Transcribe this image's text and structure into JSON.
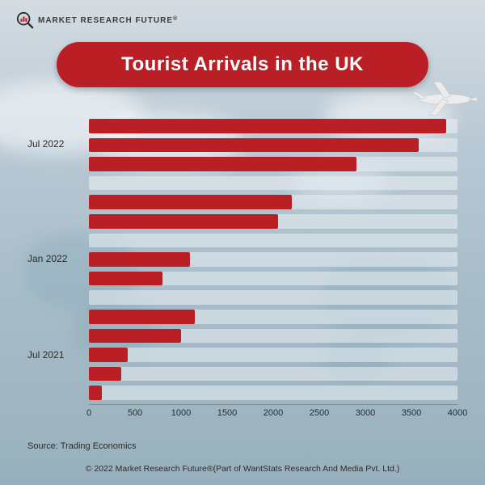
{
  "logo": {
    "text": "MARKET RESEARCH FUTURE",
    "accent": "#b91f25",
    "dark": "#2b2b2b"
  },
  "title": {
    "text": "Tourist Arrivals in the UK",
    "bg": "#b91f25",
    "color": "#ffffff",
    "fontsize": 24
  },
  "chart": {
    "type": "bar-horizontal",
    "xlim": [
      0,
      4000
    ],
    "xtick_step": 500,
    "xticks": [
      "0",
      "500",
      "1000",
      "1500",
      "2000",
      "2500",
      "3000",
      "3500",
      "4000"
    ],
    "bar_color": "#b91f25",
    "track_color": "rgba(235,240,244,0.55)",
    "row_height": 20.8,
    "ylabels": [
      {
        "text": "Jul 2022",
        "row": 1
      },
      {
        "text": "Jan 2022",
        "row": 7
      },
      {
        "text": "Jul 2021",
        "row": 12
      }
    ],
    "bars": [
      {
        "row": 0,
        "value": 3880
      },
      {
        "row": 1,
        "value": 3580
      },
      {
        "row": 2,
        "value": 2900
      },
      {
        "row": 4,
        "value": 2200
      },
      {
        "row": 5,
        "value": 2050
      },
      {
        "row": 7,
        "value": 1100
      },
      {
        "row": 8,
        "value": 800
      },
      {
        "row": 10,
        "value": 1150
      },
      {
        "row": 11,
        "value": 1000
      },
      {
        "row": 12,
        "value": 420
      },
      {
        "row": 13,
        "value": 350
      },
      {
        "row": 14,
        "value": 140
      }
    ],
    "row_count": 15,
    "label_fontsize": 12,
    "tick_fontsize": 11
  },
  "source": {
    "label": "Source: Trading Economics"
  },
  "copyright": {
    "text": "© 2022 Market Research Future®(Part of WantStats Research And Media Pvt. Ltd.)"
  },
  "plane_color": "#e8e8e8"
}
